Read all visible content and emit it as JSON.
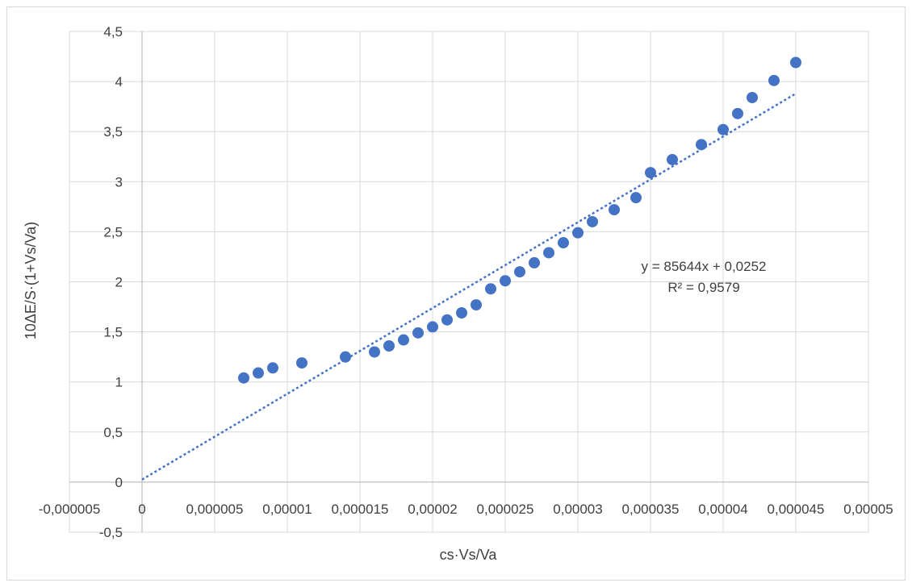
{
  "chart_data": {
    "type": "scatter",
    "xlabel": "cs·Vs/Va",
    "ylabel": "10ΔE/S·(1+Vs/Va)",
    "xlim": [
      -5e-06,
      5e-05
    ],
    "ylim": [
      -0.5,
      4.5
    ],
    "x_ticks": [
      "-0,000005",
      "0",
      "0,000005",
      "0,00001",
      "0,000015",
      "0,00002",
      "0,000025",
      "0,00003",
      "0,000035",
      "0,00004",
      "0,000045",
      "0,00005"
    ],
    "y_ticks": [
      "-0,5",
      "0",
      "0,5",
      "1",
      "1,5",
      "2",
      "2,5",
      "3",
      "3,5",
      "4",
      "4,5"
    ],
    "grid": true,
    "marker_color": "#4472C4",
    "series": [
      {
        "x": [
          7e-06,
          8e-06,
          9e-06,
          1.1e-05,
          1.4e-05,
          1.6e-05,
          1.7e-05,
          1.8e-05,
          1.9e-05,
          2e-05,
          2.1e-05,
          2.2e-05,
          2.3e-05,
          2.4e-05,
          2.5e-05,
          2.6e-05,
          2.7e-05,
          2.8e-05,
          2.9e-05,
          3e-05,
          3.1e-05,
          3.25e-05,
          3.4e-05,
          3.5e-05,
          3.65e-05,
          3.85e-05,
          4e-05,
          4.1e-05,
          4.2e-05,
          4.35e-05,
          4.5e-05
        ],
        "y": [
          1.04,
          1.09,
          1.14,
          1.19,
          1.25,
          1.3,
          1.36,
          1.42,
          1.49,
          1.55,
          1.62,
          1.69,
          1.77,
          1.93,
          2.01,
          2.1,
          2.19,
          2.29,
          2.39,
          2.49,
          2.6,
          2.72,
          2.84,
          3.09,
          3.22,
          3.37,
          3.52,
          3.68,
          3.84,
          4.01,
          4.19
        ]
      }
    ],
    "trendline": {
      "type": "linear",
      "slope": 85644,
      "intercept": 0.0252,
      "x_range": [
        0,
        4.5e-05
      ],
      "equation": "y = 85644x + 0,0252",
      "r_squared": "R² = 0,9579",
      "color": "#4472C4"
    }
  }
}
